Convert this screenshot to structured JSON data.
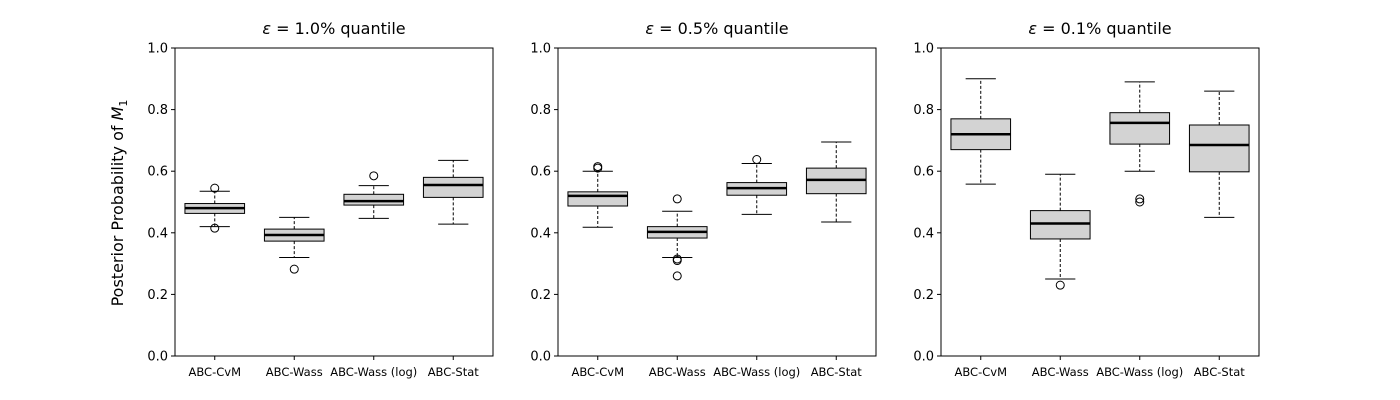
{
  "ylabel_prefix": "Posterior Probability of ",
  "ylabel_var": "M",
  "ylabel_sub": "1",
  "chart_data": [
    {
      "type": "box",
      "title_symbol": "ε",
      "title_rest": " = 1.0% quantile",
      "categories": [
        "ABC-CvM",
        "ABC-Wass",
        "ABC-Wass (log)",
        "ABC-Stat"
      ],
      "ylim": [
        0,
        1
      ],
      "yticks": [
        "0.0",
        "0.2",
        "0.4",
        "0.6",
        "0.8",
        "1.0"
      ],
      "boxes": [
        {
          "whisker_low": 0.42,
          "q1": 0.463,
          "median": 0.48,
          "q3": 0.495,
          "whisker_high": 0.535,
          "outliers": [
            0.545,
            0.415
          ]
        },
        {
          "whisker_low": 0.32,
          "q1": 0.373,
          "median": 0.393,
          "q3": 0.412,
          "whisker_high": 0.45,
          "outliers": [
            0.282
          ]
        },
        {
          "whisker_low": 0.447,
          "q1": 0.49,
          "median": 0.503,
          "q3": 0.525,
          "whisker_high": 0.553,
          "outliers": [
            0.585
          ]
        },
        {
          "whisker_low": 0.428,
          "q1": 0.515,
          "median": 0.555,
          "q3": 0.58,
          "whisker_high": 0.635,
          "outliers": []
        }
      ]
    },
    {
      "type": "box",
      "title_symbol": "ε",
      "title_rest": " = 0.5% quantile",
      "categories": [
        "ABC-CvM",
        "ABC-Wass",
        "ABC-Wass (log)",
        "ABC-Stat"
      ],
      "ylim": [
        0,
        1
      ],
      "yticks": [
        "0.0",
        "0.2",
        "0.4",
        "0.6",
        "0.8",
        "1.0"
      ],
      "boxes": [
        {
          "whisker_low": 0.418,
          "q1": 0.487,
          "median": 0.52,
          "q3": 0.533,
          "whisker_high": 0.6,
          "outliers": [
            0.61,
            0.615
          ]
        },
        {
          "whisker_low": 0.32,
          "q1": 0.383,
          "median": 0.403,
          "q3": 0.42,
          "whisker_high": 0.47,
          "outliers": [
            0.51,
            0.31,
            0.315,
            0.26
          ]
        },
        {
          "whisker_low": 0.46,
          "q1": 0.522,
          "median": 0.545,
          "q3": 0.563,
          "whisker_high": 0.625,
          "outliers": [
            0.638
          ]
        },
        {
          "whisker_low": 0.435,
          "q1": 0.527,
          "median": 0.572,
          "q3": 0.61,
          "whisker_high": 0.695,
          "outliers": []
        }
      ]
    },
    {
      "type": "box",
      "title_symbol": "ε",
      "title_rest": " = 0.1% quantile",
      "categories": [
        "ABC-CvM",
        "ABC-Wass",
        "ABC-Wass (log)",
        "ABC-Stat"
      ],
      "ylim": [
        0,
        1
      ],
      "yticks": [
        "0.0",
        "0.2",
        "0.4",
        "0.6",
        "0.8",
        "1.0"
      ],
      "boxes": [
        {
          "whisker_low": 0.558,
          "q1": 0.67,
          "median": 0.72,
          "q3": 0.77,
          "whisker_high": 0.9,
          "outliers": []
        },
        {
          "whisker_low": 0.25,
          "q1": 0.38,
          "median": 0.43,
          "q3": 0.472,
          "whisker_high": 0.59,
          "outliers": [
            0.23
          ]
        },
        {
          "whisker_low": 0.6,
          "q1": 0.688,
          "median": 0.757,
          "q3": 0.79,
          "whisker_high": 0.89,
          "outliers": [
            0.5,
            0.51
          ]
        },
        {
          "whisker_low": 0.45,
          "q1": 0.598,
          "median": 0.685,
          "q3": 0.75,
          "whisker_high": 0.86,
          "outliers": []
        }
      ]
    }
  ]
}
